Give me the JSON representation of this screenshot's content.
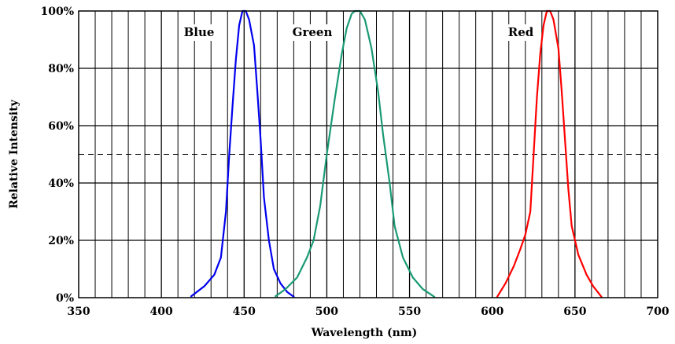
{
  "chart_data": {
    "type": "line",
    "xlabel": "Wavelength (nm)",
    "ylabel": "Relative Intensity",
    "xlim": [
      350,
      700
    ],
    "ylim": [
      0,
      100
    ],
    "x_ticks": [
      350,
      400,
      450,
      500,
      550,
      600,
      650,
      700
    ],
    "x_tick_labels": [
      "350",
      "400",
      "450",
      "500",
      "550",
      "600",
      "650",
      "700"
    ],
    "y_ticks": [
      0,
      20,
      40,
      60,
      80,
      100
    ],
    "y_tick_labels": [
      "0%",
      "20%",
      "40%",
      "60%",
      "80%",
      "100%"
    ],
    "grid": true,
    "x_minor_grid_step": 10,
    "reference_line": {
      "y": 50,
      "style": "dashed"
    },
    "series": [
      {
        "name": "Blue",
        "color": "#0000ee",
        "points": [
          [
            418,
            0.5
          ],
          [
            426,
            4
          ],
          [
            432,
            8
          ],
          [
            436,
            14
          ],
          [
            439,
            30
          ],
          [
            441,
            50
          ],
          [
            443,
            67
          ],
          [
            445,
            83
          ],
          [
            447,
            95
          ],
          [
            449,
            100
          ],
          [
            451,
            100
          ],
          [
            453,
            97
          ],
          [
            456,
            88
          ],
          [
            458,
            72
          ],
          [
            460,
            55
          ],
          [
            462,
            35
          ],
          [
            465,
            20
          ],
          [
            468,
            10
          ],
          [
            472,
            5
          ],
          [
            476,
            2
          ],
          [
            480,
            0.3
          ]
        ]
      },
      {
        "name": "Green",
        "color": "#1a9a74",
        "points": [
          [
            469,
            0.5
          ],
          [
            475,
            3
          ],
          [
            482,
            7
          ],
          [
            488,
            14
          ],
          [
            492,
            20
          ],
          [
            496,
            32
          ],
          [
            500,
            50
          ],
          [
            505,
            70
          ],
          [
            509,
            85
          ],
          [
            512,
            94
          ],
          [
            515,
            99
          ],
          [
            517,
            100
          ],
          [
            520,
            100
          ],
          [
            523,
            97
          ],
          [
            527,
            87
          ],
          [
            531,
            72
          ],
          [
            534,
            57
          ],
          [
            538,
            40
          ],
          [
            541,
            25
          ],
          [
            546,
            14
          ],
          [
            552,
            7
          ],
          [
            558,
            3
          ],
          [
            565,
            0.3
          ]
        ]
      },
      {
        "name": "Red",
        "color": "#ff0000",
        "points": [
          [
            603,
            0.3
          ],
          [
            608,
            5
          ],
          [
            613,
            11
          ],
          [
            617,
            17
          ],
          [
            620,
            22
          ],
          [
            623,
            30
          ],
          [
            625,
            50
          ],
          [
            627,
            70
          ],
          [
            629,
            85
          ],
          [
            631,
            95
          ],
          [
            633,
            100
          ],
          [
            635,
            100
          ],
          [
            637,
            97
          ],
          [
            640,
            87
          ],
          [
            642,
            72
          ],
          [
            644,
            55
          ],
          [
            646,
            38
          ],
          [
            648,
            25
          ],
          [
            652,
            15
          ],
          [
            657,
            8
          ],
          [
            661,
            4
          ],
          [
            666,
            0.3
          ]
        ]
      }
    ]
  }
}
